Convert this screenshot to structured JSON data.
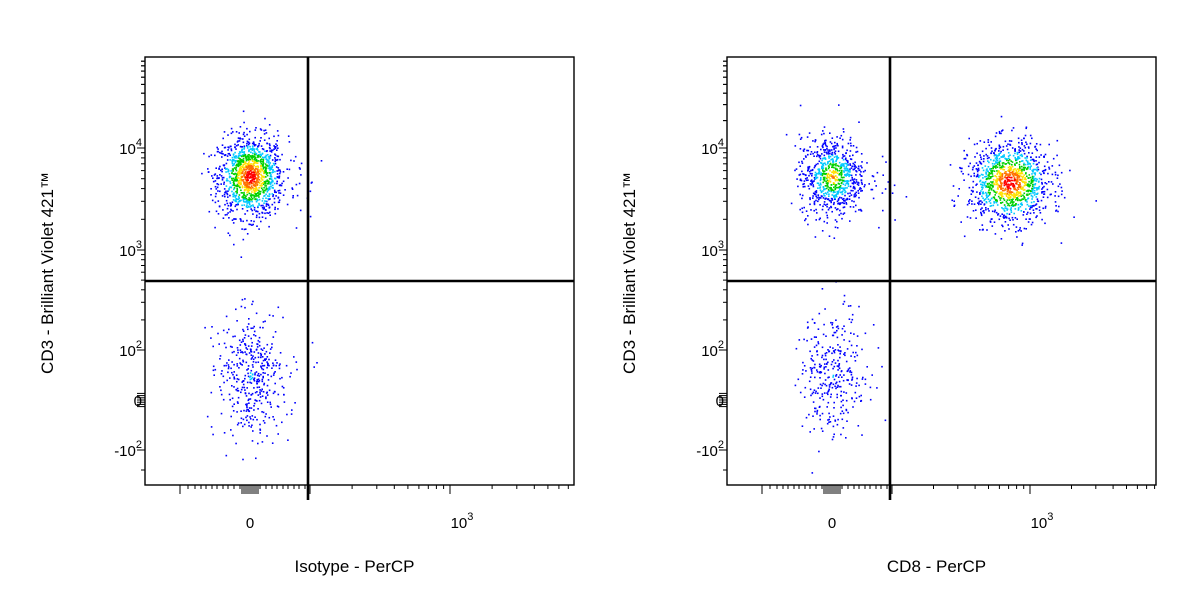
{
  "chart_data": [
    {
      "type": "scatter",
      "subtype": "density flow cytometry dot plot with quadrant gates",
      "xlabel": "Isotype - PerCP",
      "ylabel": "CD3 - Brilliant Violet 421™",
      "x_scale": "biexponential",
      "y_scale": "biexponential",
      "x_tick_labels": [
        {
          "base": "0",
          "exp": ""
        },
        {
          "base": "10",
          "exp": "3"
        }
      ],
      "y_tick_labels": [
        {
          "base": "10",
          "exp": "4"
        },
        {
          "base": "10",
          "exp": "3"
        },
        {
          "base": "10",
          "exp": "2"
        },
        {
          "base": "0",
          "exp": ""
        },
        {
          "base": "-10",
          "exp": "2"
        }
      ],
      "gates": {
        "x": 180,
        "y": 450
      },
      "populations": [
        {
          "name": "",
          "x_center": 0,
          "x_spread": 55,
          "y_center": 5500,
          "y_spread_log10": 0.2,
          "events": 1300,
          "density": "high"
        },
        {
          "name": "",
          "x_center": 0,
          "x_spread": 55,
          "y_center": 50,
          "y_spread_log10": 0.45,
          "events": 420,
          "density": "low"
        }
      ],
      "grid": false,
      "legend": "none"
    },
    {
      "type": "scatter",
      "subtype": "density flow cytometry dot plot with quadrant gates",
      "xlabel": "CD8 - PerCP",
      "ylabel": "CD3 - Brilliant Violet 421™",
      "x_scale": "biexponential",
      "y_scale": "biexponential",
      "x_tick_labels": [
        {
          "base": "0",
          "exp": ""
        },
        {
          "base": "10",
          "exp": "3"
        }
      ],
      "y_tick_labels": [
        {
          "base": "10",
          "exp": "4"
        },
        {
          "base": "10",
          "exp": "3"
        },
        {
          "base": "10",
          "exp": "2"
        },
        {
          "base": "0",
          "exp": ""
        },
        {
          "base": "-10",
          "exp": "2"
        }
      ],
      "gates": {
        "x": 180,
        "y": 450
      },
      "populations": [
        {
          "name": "",
          "x_center": 0,
          "x_spread": 55,
          "y_center": 5500,
          "y_spread_log10": 0.2,
          "events": 800,
          "density": "medium"
        },
        {
          "name": "",
          "x_center": 750,
          "x_spread": 0.12,
          "y_center": 4800,
          "y_spread_log10": 0.2,
          "events": 1200,
          "density": "high"
        },
        {
          "name": "",
          "x_center": 0,
          "x_spread": 55,
          "y_center": 50,
          "y_spread_log10": 0.45,
          "events": 330,
          "density": "low"
        }
      ],
      "grid": false,
      "legend": "none"
    }
  ],
  "colors": {
    "low_density": "#0000ff",
    "medium_low": "#00c8ff",
    "medium": "#00d000",
    "medium_high": "#ffe000",
    "high_density": "#ff0000",
    "gate_line": "#000000"
  }
}
